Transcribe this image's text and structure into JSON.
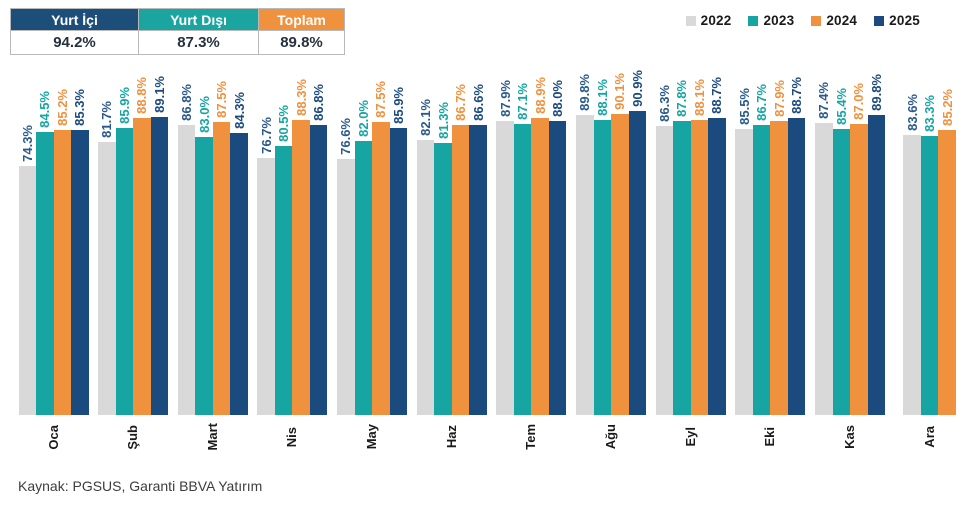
{
  "summary_table": {
    "columns": [
      {
        "label": "Yurt İçi",
        "value": "94.2%",
        "color": "#1d4e79"
      },
      {
        "label": "Yurt Dışı",
        "value": "87.3%",
        "color": "#1ba5a1"
      },
      {
        "label": "Toplam",
        "value": "89.8%",
        "color": "#f0913e"
      }
    ]
  },
  "source": "Kaynak: PGSUS, Garanti BBVA Yatırım",
  "chart_data": {
    "type": "bar",
    "title": "",
    "xlabel": "",
    "ylabel": "",
    "ylim": [
      0,
      100
    ],
    "value_suffix": "%",
    "grid": false,
    "legend_position": "top-right",
    "categories": [
      "Oca",
      "Şub",
      "Mart",
      "Nis",
      "May",
      "Haz",
      "Tem",
      "Ağu",
      "Eyl",
      "Eki",
      "Kas",
      "Ara"
    ],
    "series": [
      {
        "name": "2022",
        "color": "#d9d9d9",
        "label_color": "#2a5a8c",
        "values": [
          74.3,
          81.7,
          86.8,
          76.7,
          76.6,
          82.1,
          87.9,
          89.8,
          86.3,
          85.5,
          87.4,
          83.6
        ]
      },
      {
        "name": "2023",
        "color": "#16a5a3",
        "label_color": "#16a5a3",
        "values": [
          84.5,
          85.9,
          83.0,
          80.5,
          82.0,
          81.3,
          87.1,
          88.1,
          87.8,
          86.7,
          85.4,
          83.3
        ]
      },
      {
        "name": "2024",
        "color": "#f0913e",
        "label_color": "#f0913e",
        "values": [
          85.2,
          88.8,
          87.5,
          88.3,
          87.5,
          86.7,
          88.9,
          90.1,
          88.1,
          87.9,
          87.0,
          85.2
        ]
      },
      {
        "name": "2025",
        "color": "#1b4a7e",
        "label_color": "#1b4a7e",
        "values": [
          85.3,
          89.1,
          84.3,
          86.8,
          85.9,
          86.6,
          88.0,
          90.9,
          88.7,
          88.7,
          89.8,
          null
        ]
      }
    ]
  }
}
